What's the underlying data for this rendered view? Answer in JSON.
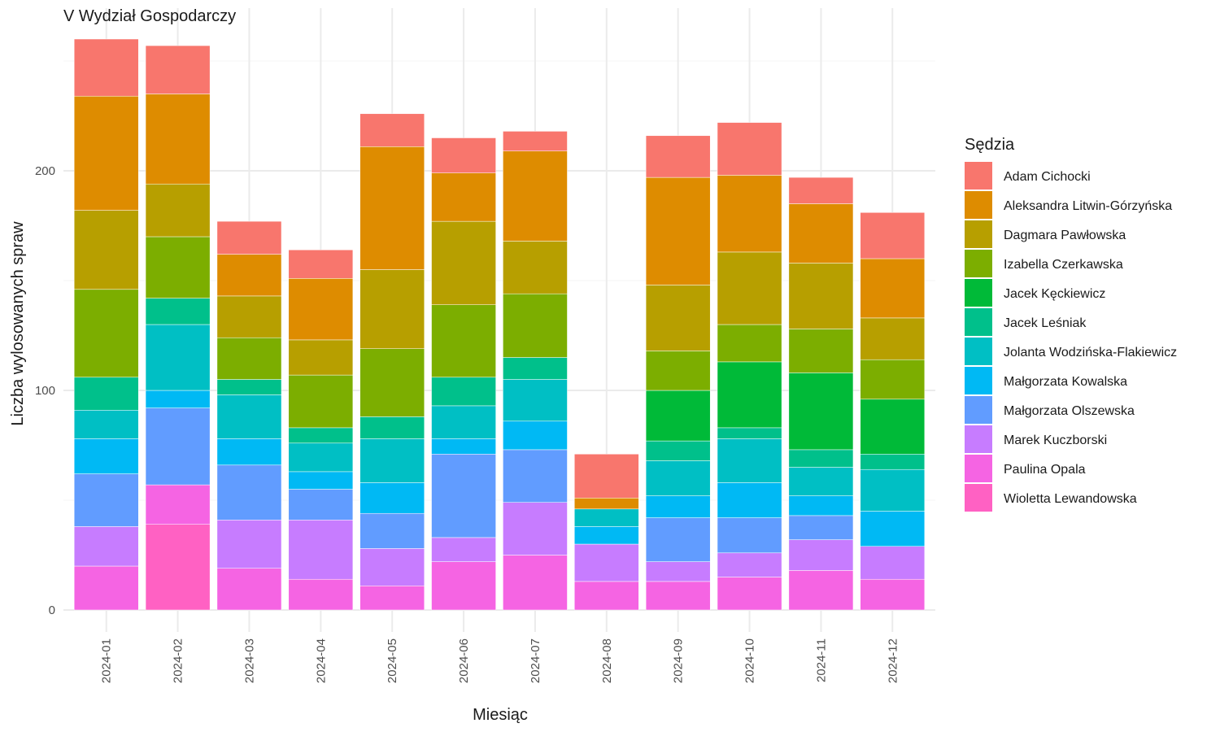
{
  "chart_data": {
    "type": "bar",
    "stacked": true,
    "title": "V Wydział Gospodarczy",
    "xlabel": "Miesiąc",
    "ylabel": "Liczba wylosowanych spraw",
    "ylim": [
      0,
      260
    ],
    "y_ticks": [
      "0",
      "100",
      "200"
    ],
    "grid": true,
    "legend_title": "Sędzia",
    "legend_position": "right",
    "categories": [
      "2024-01",
      "2024-02",
      "2024-03",
      "2024-04",
      "2024-05",
      "2024-06",
      "2024-07",
      "2024-08",
      "2024-09",
      "2024-10",
      "2024-11",
      "2024-12"
    ],
    "series": [
      {
        "name": "Wioletta Lewandowska",
        "color": "#FF61C3",
        "values": [
          0,
          39,
          0,
          0,
          0,
          0,
          0,
          0,
          0,
          0,
          0,
          0
        ]
      },
      {
        "name": "Paulina Opala",
        "color": "#F564E3",
        "values": [
          20,
          18,
          19,
          14,
          11,
          22,
          25,
          13,
          13,
          15,
          18,
          14
        ]
      },
      {
        "name": "Marek Kuczborski",
        "color": "#C77CFF",
        "values": [
          18,
          0,
          22,
          27,
          17,
          11,
          24,
          17,
          9,
          11,
          14,
          15
        ]
      },
      {
        "name": "Małgorzata Olszewska",
        "color": "#619CFF",
        "values": [
          24,
          35,
          25,
          14,
          16,
          38,
          24,
          0,
          20,
          16,
          11,
          0
        ]
      },
      {
        "name": "Małgorzata Kowalska",
        "color": "#00B9F4",
        "values": [
          16,
          8,
          12,
          8,
          14,
          7,
          13,
          8,
          10,
          16,
          9,
          16
        ]
      },
      {
        "name": "Jolanta Wodzińska-Flakiewicz",
        "color": "#00BFC4",
        "values": [
          13,
          30,
          20,
          13,
          20,
          15,
          19,
          8,
          16,
          20,
          13,
          19
        ]
      },
      {
        "name": "Jacek Leśniak",
        "color": "#00C08B",
        "values": [
          15,
          12,
          7,
          7,
          10,
          13,
          10,
          0,
          9,
          5,
          8,
          7
        ]
      },
      {
        "name": "Jacek Kęckiewicz",
        "color": "#00BA38",
        "values": [
          0,
          0,
          0,
          0,
          0,
          0,
          0,
          0,
          23,
          30,
          35,
          25
        ]
      },
      {
        "name": "Izabella Czerkawska",
        "color": "#7CAE00",
        "values": [
          40,
          28,
          19,
          24,
          31,
          33,
          29,
          0,
          18,
          17,
          20,
          18
        ]
      },
      {
        "name": "Dagmara Pawłowska",
        "color": "#B79F00",
        "values": [
          36,
          24,
          19,
          16,
          36,
          38,
          24,
          0,
          30,
          33,
          30,
          19
        ]
      },
      {
        "name": "Aleksandra Litwin-Górzyńska",
        "color": "#DE8C00",
        "values": [
          52,
          41,
          19,
          28,
          56,
          22,
          41,
          5,
          49,
          35,
          27,
          27
        ]
      },
      {
        "name": "Adam Cichocki",
        "color": "#F8766D",
        "values": [
          26,
          22,
          15,
          13,
          15,
          16,
          9,
          20,
          19,
          24,
          12,
          21
        ]
      }
    ],
    "legend_order": [
      "Adam Cichocki",
      "Aleksandra Litwin-Górzyńska",
      "Dagmara Pawłowska",
      "Izabella Czerkawska",
      "Jacek Kęckiewicz",
      "Jacek Leśniak",
      "Jolanta Wodzińska-Flakiewicz",
      "Małgorzata Kowalska",
      "Małgorzata Olszewska",
      "Marek Kuczborski",
      "Paulina Opala",
      "Wioletta Lewandowska"
    ]
  }
}
